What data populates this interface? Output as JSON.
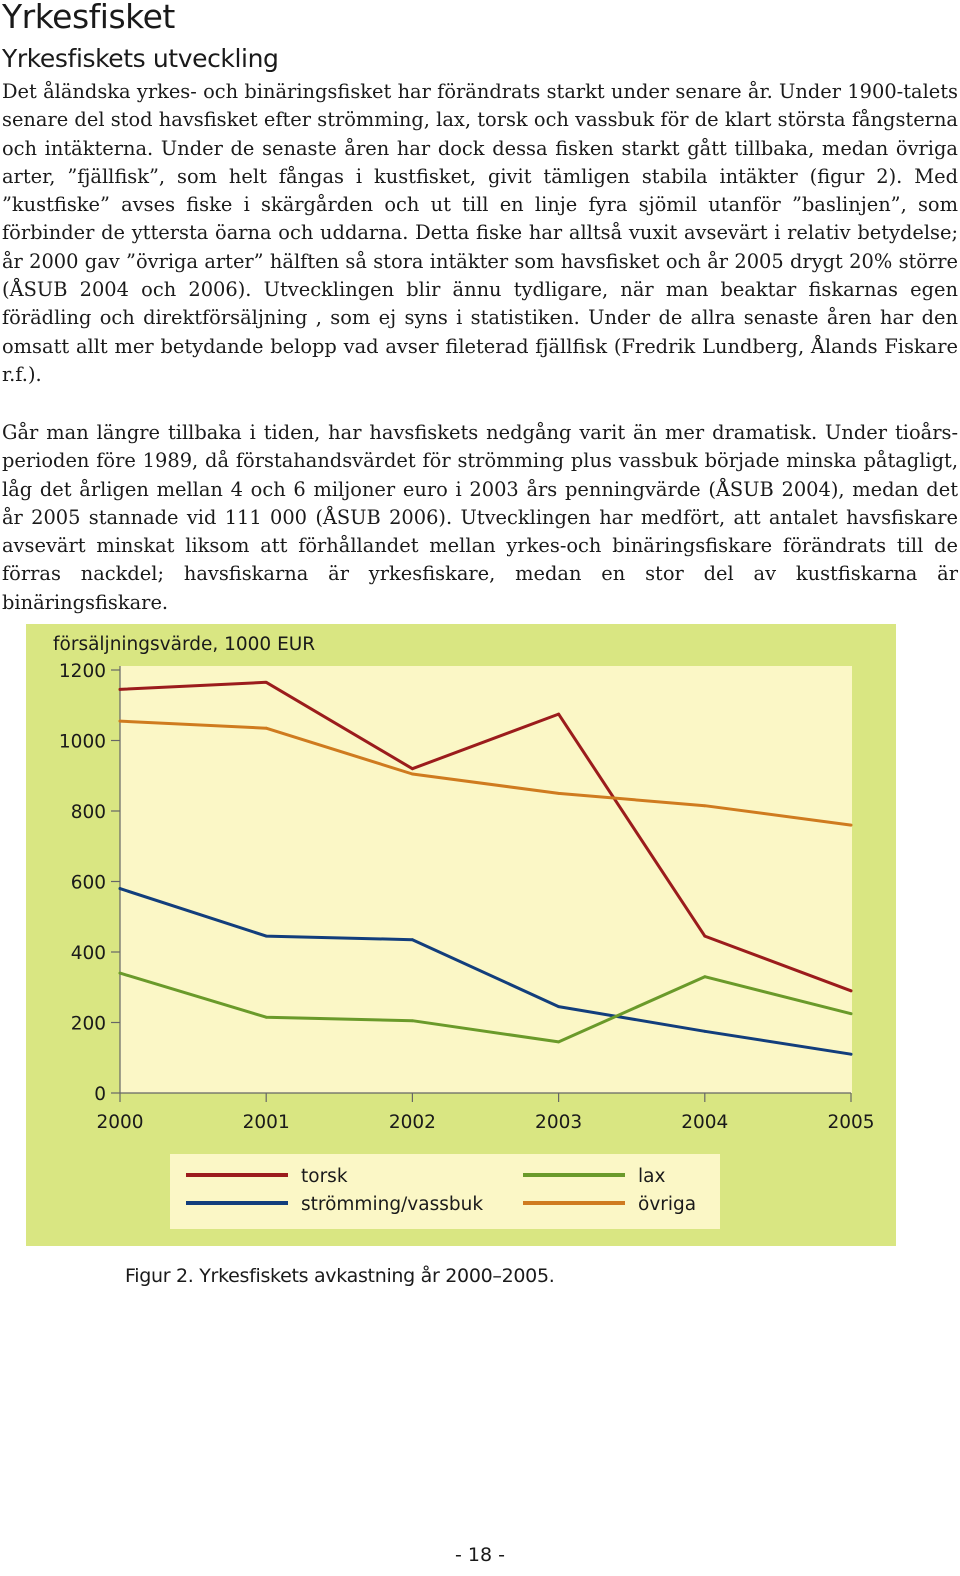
{
  "title": "Yrkesfisket",
  "subtitle": "Yrkesfiskets utveckling",
  "paragraphs": [
    "Det åländska yrkes- och binäringsfisket har förändrats starkt under senare år. Under 1900-talets senare del stod havsfisket efter strömming, lax, torsk och vassbuk för de klart största fångsterna och intäkterna. Under de senaste åren har dock dessa fisken starkt gått tillbaka, medan övriga arter, ”fjällfisk”, som helt fångas i kustfisket, givit tämligen stabila intäkter (figur 2). Med ”kustfiske” avses fiske i skärgården och ut till en linje fyra sjömil utanför ”baslinjen”, som förbinder de yttersta öarna och uddarna. Detta fiske har alltså vuxit avsevärt i relativ betydelse; år 2000 gav ”övriga arter” hälften så stora intäkter som havsfisket och år 2005 drygt 20% större (ÅSUB 2004 och 2006). Utvecklingen blir ännu tydligare, när man beaktar fiskarnas egen förädling och direktförsäljning , som ej syns i statistiken. Under de allra senaste åren har den omsatt allt mer betydande belopp vad avser fileterad fjällfisk (Fredrik Lundberg, Ålands Fiskare r.f.).",
    "Går man längre tillbaka i tiden, har havsfiskets nedgång varit än mer dramatisk. Under tioårs­perioden före 1989, då förstahandsvärdet för strömming plus vassbuk började minska påtagligt, låg det årligen mellan 4 och 6 miljoner euro i 2003 års penningvärde (ÅSUB 2004), medan det år 2005 stannade vid 111 000 (ÅSUB 2006). Utvecklingen har medfört, att antalet havsfiskare avsevärt minskat liksom att förhållandet mellan yrkes-och binäringsfiskare förändrats till de förras nackdel; havsfiskarna är yrkesfiskare, medan en stor del av kustfiskarna är binäringsfiskare."
  ],
  "chart_data": {
    "type": "line",
    "title": "",
    "ylabel": "försäljningsvärde, 1000 EUR",
    "xlabel": "",
    "x": [
      2000,
      2001,
      2002,
      2003,
      2004,
      2005
    ],
    "x_tick_labels": [
      "2000",
      "2001",
      "2002",
      "2003",
      "2004",
      "2005"
    ],
    "y_ticks": [
      0,
      200,
      400,
      600,
      800,
      1000,
      1200
    ],
    "y_tick_labels": [
      "0",
      "200",
      "400",
      "600",
      "800",
      "1000",
      "1200"
    ],
    "ylim": [
      0,
      1200
    ],
    "xlim": [
      2000,
      2005
    ],
    "grid": false,
    "legend_position": "bottom",
    "series": [
      {
        "name": "torsk",
        "color": "#9b1c1c",
        "values": [
          1145,
          1165,
          920,
          1075,
          445,
          290
        ]
      },
      {
        "name": "strömming/vassbuk",
        "color": "#123e7c",
        "values": [
          580,
          445,
          435,
          245,
          175,
          110
        ]
      },
      {
        "name": "lax",
        "color": "#6a9a2a",
        "values": [
          340,
          215,
          205,
          145,
          330,
          225
        ]
      },
      {
        "name": "övriga",
        "color": "#cf7b1f",
        "values": [
          1055,
          1035,
          905,
          850,
          815,
          760
        ]
      }
    ]
  },
  "chart_colors": {
    "panel_bg": "#d9e682",
    "plot_bg": "#fbf7c6",
    "legend_bg": "#fbf7c6"
  },
  "caption": "Figur 2. Yrkesfiskets avkastning år 2000–2005.",
  "page_number": "- 18 -"
}
